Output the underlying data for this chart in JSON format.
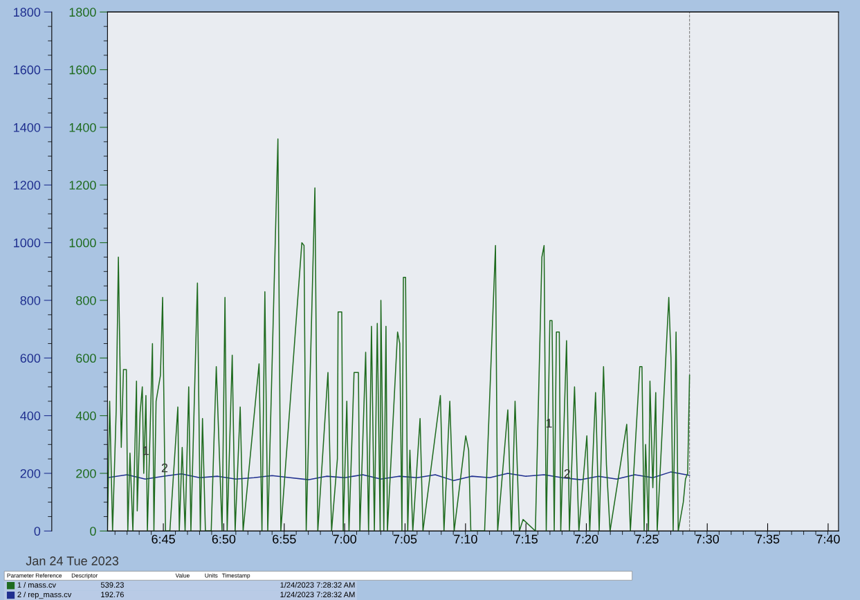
{
  "chart_data": {
    "type": "line",
    "xlim": [
      6.673,
      7.681
    ],
    "xticks": [
      {
        "value": 6.75,
        "label": "6:45"
      },
      {
        "value": 6.8333,
        "label": "6:50"
      },
      {
        "value": 6.9167,
        "label": "6:55"
      },
      {
        "value": 7.0,
        "label": "7:00"
      },
      {
        "value": 7.0833,
        "label": "7:05"
      },
      {
        "value": 7.1667,
        "label": "7:10"
      },
      {
        "value": 7.25,
        "label": "7:15"
      },
      {
        "value": 7.3333,
        "label": "7:20"
      },
      {
        "value": 7.4167,
        "label": "7:25"
      },
      {
        "value": 7.5,
        "label": "7:30"
      },
      {
        "value": 7.5833,
        "label": "7:35"
      },
      {
        "value": 7.6667,
        "label": "7:40"
      }
    ],
    "ylim": [
      0,
      1800
    ],
    "yticks": [
      0,
      200,
      400,
      600,
      800,
      1000,
      1200,
      1400,
      1600,
      1800
    ],
    "y2lim": [
      0,
      1800
    ],
    "y2ticks": [
      0,
      200,
      400,
      600,
      800,
      1000,
      1200,
      1400,
      1600,
      1800
    ],
    "grid": false,
    "legend": "bottom left",
    "marker": "none",
    "line_style": "solid",
    "ref_lines": [
      {
        "axis": "x",
        "value": 7.4756,
        "color": "#808080",
        "line_style": "dashed"
      }
    ],
    "annotations": [
      "Jan 24 Tue 2023",
      "Parameter Reference",
      "Descriptor",
      "Value",
      "Units",
      "Timestamp",
      "539.23",
      "1/24/2023 7:28:32 AM",
      "192.76",
      "1/24/2023 7:28:32 AM",
      {
        "text": "1",
        "x": 6.721,
        "y": 255
      },
      {
        "text": "1",
        "x": 7.277,
        "y": 350
      },
      {
        "text": "2",
        "x": 6.747,
        "y": 195
      },
      {
        "text": "2",
        "x": 7.302,
        "y": 175
      }
    ],
    "series": [
      {
        "name": "1 / mass.cv",
        "color": "#1f6b1f",
        "axis": "y2",
        "x": [
          6.673,
          6.676,
          6.68,
          6.685,
          6.688,
          6.692,
          6.695,
          6.699,
          6.701,
          6.704,
          6.708,
          6.713,
          6.714,
          6.718,
          6.721,
          6.723,
          6.726,
          6.728,
          6.735,
          6.737,
          6.74,
          6.746,
          6.749,
          6.753,
          6.759,
          6.77,
          6.772,
          6.776,
          6.78,
          6.785,
          6.788,
          6.797,
          6.801,
          6.804,
          6.808,
          6.816,
          6.823,
          6.831,
          6.835,
          6.838,
          6.845,
          6.849,
          6.856,
          6.86,
          6.882,
          6.886,
          6.89,
          6.894,
          6.908,
          6.912,
          6.941,
          6.944,
          6.947,
          6.959,
          6.963,
          6.977,
          6.982,
          6.99,
          6.991,
          6.996,
          6.998,
          7.003,
          7.006,
          7.013,
          7.019,
          7.021,
          7.029,
          7.033,
          7.037,
          7.041,
          7.045,
          7.049,
          7.05,
          7.054,
          7.057,
          7.059,
          7.073,
          7.076,
          7.079,
          7.081,
          7.084,
          7.087,
          7.09,
          7.094,
          7.104,
          7.108,
          7.132,
          7.137,
          7.145,
          7.151,
          7.167,
          7.171,
          7.174,
          7.193,
          7.208,
          7.211,
          7.225,
          7.23,
          7.235,
          7.241,
          7.246,
          7.263,
          7.272,
          7.275,
          7.278,
          7.283,
          7.286,
          7.289,
          7.292,
          7.296,
          7.298,
          7.306,
          7.31,
          7.317,
          7.323,
          7.334,
          7.338,
          7.346,
          7.351,
          7.357,
          7.361,
          7.366,
          7.389,
          7.394,
          7.407,
          7.41,
          7.413,
          7.415,
          7.419,
          7.421,
          7.425,
          7.429,
          7.431,
          7.447,
          7.45,
          7.453,
          7.457,
          7.46,
          7.467,
          7.47,
          7.473,
          7.4756
        ],
        "values": [
          0,
          450,
          0,
          420,
          950,
          290,
          560,
          560,
          0,
          270,
          0,
          520,
          70,
          410,
          500,
          200,
          470,
          0,
          650,
          0,
          450,
          540,
          810,
          0,
          0,
          430,
          0,
          290,
          0,
          500,
          0,
          860,
          0,
          390,
          0,
          0,
          570,
          0,
          810,
          0,
          610,
          0,
          430,
          0,
          580,
          0,
          830,
          0,
          1360,
          0,
          1000,
          990,
          0,
          1190,
          0,
          550,
          0,
          250,
          760,
          760,
          0,
          450,
          0,
          550,
          550,
          0,
          620,
          0,
          710,
          0,
          720,
          0,
          800,
          0,
          710,
          0,
          690,
          650,
          0,
          880,
          880,
          0,
          280,
          0,
          390,
          0,
          470,
          0,
          450,
          0,
          330,
          280,
          0,
          0,
          990,
          0,
          420,
          0,
          450,
          0,
          40,
          0,
          950,
          990,
          0,
          730,
          730,
          0,
          690,
          690,
          0,
          660,
          0,
          500,
          0,
          330,
          0,
          480,
          0,
          570,
          230,
          0,
          370,
          0,
          570,
          570,
          0,
          300,
          0,
          520,
          150,
          480,
          0,
          810,
          600,
          0,
          690,
          0,
          100,
          180,
          200,
          540
        ]
      },
      {
        "name": "2 / rep_mass.cv",
        "color": "#1f2f8f",
        "x": [
          6.673,
          6.7,
          6.725,
          6.75,
          6.775,
          6.8,
          6.825,
          6.85,
          6.875,
          6.9,
          6.925,
          6.95,
          6.975,
          7.0,
          7.025,
          7.05,
          7.075,
          7.1,
          7.125,
          7.15,
          7.175,
          7.2,
          7.225,
          7.25,
          7.275,
          7.3,
          7.325,
          7.35,
          7.375,
          7.4,
          7.425,
          7.45,
          7.4756
        ],
        "values": [
          185,
          195,
          180,
          190,
          198,
          185,
          190,
          180,
          185,
          192,
          185,
          178,
          190,
          185,
          195,
          180,
          190,
          185,
          195,
          175,
          190,
          185,
          200,
          190,
          195,
          185,
          178,
          190,
          180,
          195,
          185,
          205,
          193
        ]
      }
    ]
  }
}
